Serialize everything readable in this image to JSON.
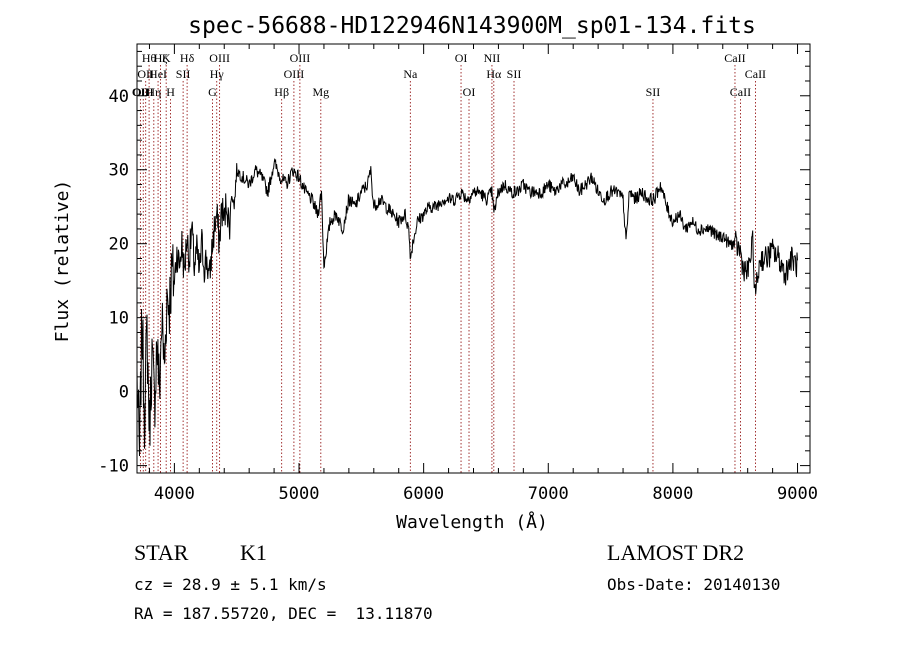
{
  "chart_data": {
    "type": "line",
    "title": "spec-56688-HD122946N143900M_sp01-134.fits",
    "xlabel": "Wavelength (Å)",
    "ylabel": "Flux (relative)",
    "xlim": [
      3700,
      9100
    ],
    "ylim": [
      -11,
      47
    ],
    "x_ticks": [
      4000,
      5000,
      6000,
      7000,
      8000,
      9000
    ],
    "y_ticks": [
      -10,
      0,
      10,
      20,
      30,
      40
    ],
    "x_tick_labels": [
      "4000",
      "5000",
      "6000",
      "7000",
      "8000",
      "9000"
    ],
    "y_tick_labels": [
      "-10",
      "0",
      "10",
      "20",
      "30",
      "40"
    ],
    "series": [
      {
        "x": [
          3700,
          3720,
          3740,
          3760,
          3780,
          3800,
          3820,
          3840,
          3860,
          3880,
          3900,
          3920,
          3940,
          3960,
          3980,
          4000,
          4020,
          4040,
          4060,
          4080,
          4100,
          4120,
          4140,
          4160,
          4180,
          4200,
          4220,
          4240,
          4260,
          4280,
          4300,
          4320,
          4340,
          4360,
          4380,
          4400,
          4420,
          4440,
          4460,
          4480,
          4500,
          4550,
          4600,
          4650,
          4700,
          4750,
          4800,
          4850,
          4900,
          4950,
          5000,
          5050,
          5100,
          5150,
          5180,
          5200,
          5250,
          5300,
          5350,
          5400,
          5450,
          5500,
          5550,
          5575,
          5600,
          5650,
          5700,
          5750,
          5800,
          5850,
          5880,
          5895,
          5910,
          5950,
          6000,
          6050,
          6100,
          6150,
          6200,
          6250,
          6300,
          6350,
          6400,
          6450,
          6500,
          6550,
          6563,
          6600,
          6650,
          6700,
          6750,
          6800,
          6850,
          6900,
          6950,
          7000,
          7050,
          7100,
          7150,
          7200,
          7250,
          7300,
          7350,
          7400,
          7450,
          7500,
          7550,
          7600,
          7625,
          7650,
          7700,
          7750,
          7800,
          7850,
          7900,
          7950,
          8000,
          8050,
          8100,
          8150,
          8200,
          8250,
          8300,
          8350,
          8400,
          8450,
          8500,
          8540,
          8560,
          8600,
          8640,
          8660,
          8700,
          8750,
          8800,
          8850,
          8900,
          8950,
          9000
        ],
        "y": [
          2,
          -9,
          10,
          -3,
          8,
          -5,
          5,
          -2,
          7,
          0,
          10,
          3,
          13,
          12,
          16,
          15,
          19,
          17,
          20,
          16,
          21,
          18,
          22,
          17,
          19,
          16,
          20,
          17,
          18,
          15,
          19,
          22,
          24,
          20,
          25,
          23,
          26,
          22,
          27,
          25,
          30,
          29,
          28,
          30,
          29,
          27,
          31,
          29,
          28,
          30,
          29,
          27,
          26,
          24,
          27,
          17,
          23,
          24,
          22,
          26,
          25,
          27,
          28,
          30,
          25,
          26,
          25,
          24,
          23,
          24,
          22,
          18,
          20,
          23,
          24,
          25,
          25,
          26,
          26,
          26,
          27,
          26,
          27,
          27,
          26,
          27,
          24,
          27,
          28,
          27,
          27,
          28,
          27,
          27,
          27,
          28,
          27,
          28,
          28,
          29,
          27,
          28,
          29,
          27,
          26,
          27,
          27,
          26,
          20,
          27,
          26,
          27,
          26,
          26,
          28,
          25,
          23,
          24,
          22,
          23,
          22,
          22,
          22,
          21,
          21,
          20,
          20,
          19,
          17,
          16,
          20,
          13,
          18,
          18,
          19,
          18,
          16,
          18,
          17
        ]
      }
    ],
    "annotations": [
      {
        "x": 3727,
        "label": "OII",
        "row": 3
      },
      {
        "x": 3750,
        "label": "OIII",
        "row": 3
      },
      {
        "x": 3770,
        "label": "OII",
        "row": 2
      },
      {
        "x": 3797,
        "label": "Hθ",
        "row": 1
      },
      {
        "x": 3835,
        "label": "Hη",
        "row": 3
      },
      {
        "x": 3869,
        "label": "HeI",
        "row": 2
      },
      {
        "x": 3889,
        "label": "Hζ",
        "row": 1
      },
      {
        "x": 3934,
        "label": "K",
        "row": 1
      },
      {
        "x": 3969,
        "label": "H",
        "row": 3
      },
      {
        "x": 4070,
        "label": "SII",
        "row": 2
      },
      {
        "x": 4102,
        "label": "Hδ",
        "row": 1
      },
      {
        "x": 4305,
        "label": "G",
        "row": 3
      },
      {
        "x": 4340,
        "label": "Hγ",
        "row": 2
      },
      {
        "x": 4363,
        "label": "OIII",
        "row": 1
      },
      {
        "x": 4861,
        "label": "Hβ",
        "row": 3
      },
      {
        "x": 4959,
        "label": "OIII",
        "row": 2
      },
      {
        "x": 5007,
        "label": "OIII",
        "row": 1
      },
      {
        "x": 5175,
        "label": "Mg",
        "row": 3
      },
      {
        "x": 5893,
        "label": "Na",
        "row": 2
      },
      {
        "x": 6300,
        "label": "OI",
        "row": 1
      },
      {
        "x": 6364,
        "label": "OI",
        "row": 3
      },
      {
        "x": 6548,
        "label": "NII",
        "row": 1
      },
      {
        "x": 6563,
        "label": "Hα",
        "row": 2
      },
      {
        "x": 6725,
        "label": "SII",
        "row": 2
      },
      {
        "x": 7840,
        "label": "SII",
        "row": 3
      },
      {
        "x": 8498,
        "label": "CaII",
        "row": 1
      },
      {
        "x": 8542,
        "label": "CaII",
        "row": 3
      },
      {
        "x": 8662,
        "label": "CaII",
        "row": 2
      }
    ],
    "grid": false,
    "legend": "none"
  },
  "info": {
    "object_class": "STAR",
    "subclass": "K1",
    "survey": "LAMOST DR2",
    "cz": "cz = 28.9 ± 5.1 km/s",
    "obs_date": "Obs-Date: 20140130",
    "coords": "RA = 187.55720, DEC =  13.11870"
  },
  "colors": {
    "spectrum": "#000000",
    "line_markers": "#8b0000",
    "background": "#ffffff"
  }
}
